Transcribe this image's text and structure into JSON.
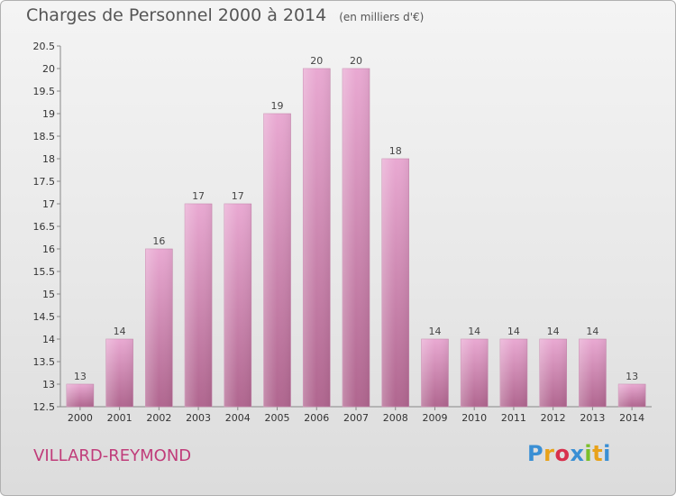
{
  "header": {
    "title": "Charges de Personnel 2000 à 2014",
    "unit": "(en milliers d'€)"
  },
  "footer": {
    "commune": "VILLARD-REYMOND",
    "logo_letters": [
      "P",
      "r",
      "o",
      "x",
      "i",
      "t",
      "i"
    ],
    "logo_colors": [
      "#3a8fd4",
      "#e8a21a",
      "#d8304c",
      "#3a8fd4",
      "#7bbf2a",
      "#e8a21a",
      "#3a8fd4"
    ]
  },
  "chart_data": {
    "type": "bar",
    "categories": [
      "2000",
      "2001",
      "2002",
      "2003",
      "2004",
      "2005",
      "2006",
      "2007",
      "2008",
      "2009",
      "2010",
      "2011",
      "2012",
      "2013",
      "2014"
    ],
    "values": [
      13,
      14,
      16,
      17,
      17,
      19,
      20,
      20,
      18,
      14,
      14,
      14,
      14,
      14,
      13
    ],
    "data_labels": [
      "13",
      "14",
      "16",
      "17",
      "17",
      "19",
      "20",
      "20",
      "18",
      "14",
      "14",
      "14",
      "14",
      "14",
      "13"
    ],
    "ylim": [
      12.5,
      20.5
    ],
    "yticks": [
      "12.5",
      "13",
      "13.5",
      "14",
      "14.5",
      "15",
      "15.5",
      "16",
      "16.5",
      "17",
      "17.5",
      "18",
      "18.5",
      "19",
      "19.5",
      "20",
      "20.5"
    ],
    "grid": false,
    "bar_color_top": "#e9a9d2",
    "bar_color_bottom": "#b0668f"
  }
}
